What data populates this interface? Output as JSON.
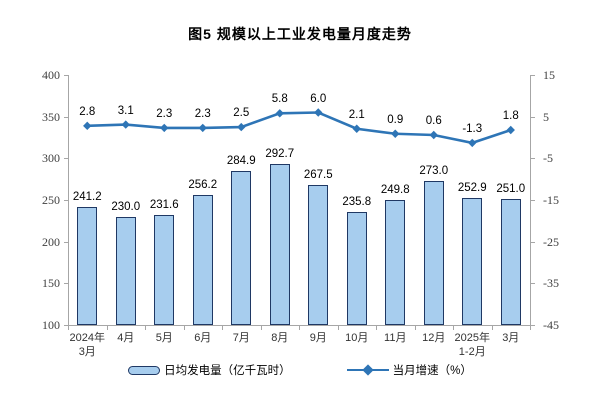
{
  "title": "图5  规模以上工业发电量月度走势",
  "chart_data": {
    "type": "bar+line combo",
    "title": "图5  规模以上工业发电量月度走势",
    "categories": [
      "2024年\n3月",
      "4月",
      "5月",
      "6月",
      "7月",
      "8月",
      "9月",
      "10月",
      "11月",
      "12月",
      "2025年\n1-2月",
      "3月"
    ],
    "series": [
      {
        "name": "日均发电量（亿千瓦时）",
        "type": "bar",
        "axis": "left",
        "values": [
          241.2,
          230.0,
          231.6,
          256.2,
          284.9,
          292.7,
          267.5,
          235.8,
          249.8,
          273.0,
          252.9,
          251.0
        ]
      },
      {
        "name": "当月增速（%）",
        "type": "line",
        "axis": "right",
        "values": [
          2.8,
          3.1,
          2.3,
          2.3,
          2.5,
          5.8,
          6.0,
          2.1,
          0.9,
          0.6,
          -1.3,
          1.8
        ]
      }
    ],
    "left_axis": {
      "min": 100,
      "max": 400,
      "ticks": [
        400,
        350,
        300,
        250,
        200,
        150,
        100
      ]
    },
    "right_axis": {
      "min": -45,
      "max": 15,
      "ticks": [
        15,
        5,
        -5,
        -15,
        -25,
        -35,
        -45
      ]
    },
    "legend_position": "bottom",
    "grid": false,
    "colors": {
      "bar_fill": "#A7CDEE",
      "bar_border": "#1F3864",
      "line": "#2E75B6",
      "axis": "#A6A6A6",
      "label_text": "#000000",
      "tick_text": "#404040"
    }
  }
}
